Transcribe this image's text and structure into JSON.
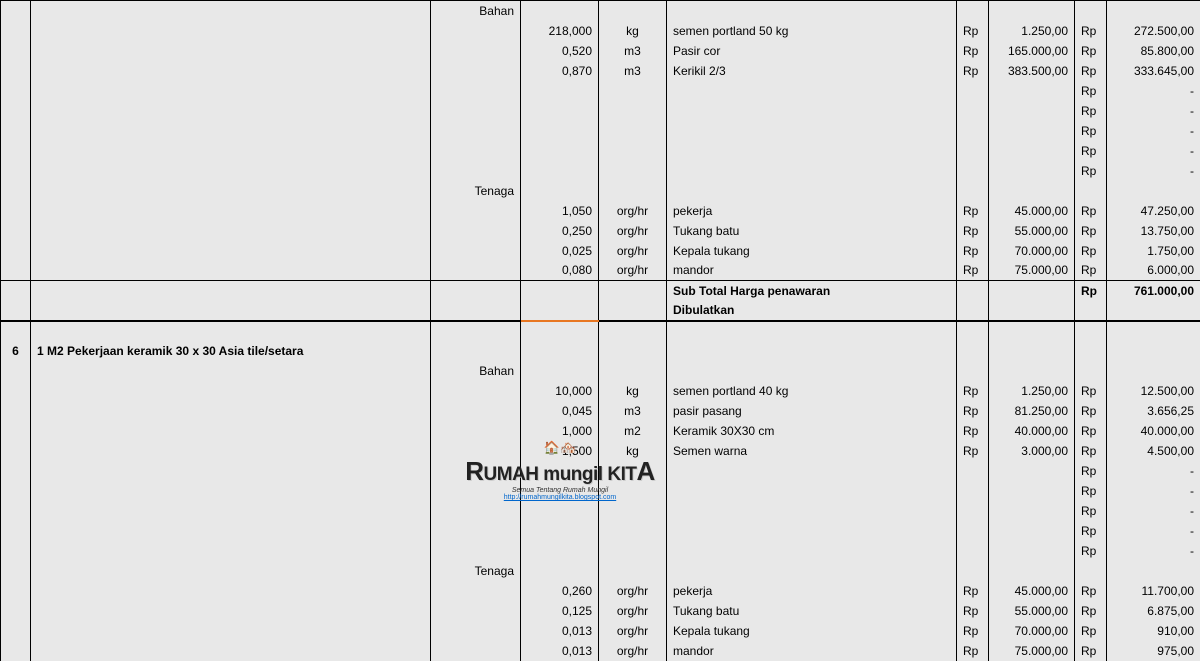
{
  "cols": {
    "no": 30,
    "desc": 400,
    "sub": 90,
    "qty": 78,
    "unit": 68,
    "item": 290,
    "curr1": 32,
    "price": 86,
    "curr2": 32,
    "total": 94
  },
  "labels": {
    "bahan": "Bahan",
    "tenaga": "Tenaga"
  },
  "section5": {
    "bahan": [
      {
        "qty": "218,000",
        "unit": "kg",
        "item": "semen portland 50 kg",
        "c1": "Rp",
        "price": "1.250,00",
        "c2": "Rp",
        "total": "272.500,00"
      },
      {
        "qty": "0,520",
        "unit": "m3",
        "item": "Pasir cor",
        "c1": "Rp",
        "price": "165.000,00",
        "c2": "Rp",
        "total": "85.800,00"
      },
      {
        "qty": "0,870",
        "unit": "m3",
        "item": "Kerikil 2/3",
        "c1": "Rp",
        "price": "383.500,00",
        "c2": "Rp",
        "total": "333.645,00"
      }
    ],
    "blank": [
      {
        "c2": "Rp",
        "total": "-"
      },
      {
        "c2": "Rp",
        "total": "-"
      },
      {
        "c2": "Rp",
        "total": "-"
      },
      {
        "c2": "Rp",
        "total": "-"
      },
      {
        "c2": "Rp",
        "total": "-"
      }
    ],
    "tenaga": [
      {
        "qty": "1,050",
        "unit": "org/hr",
        "item": "pekerja",
        "c1": "Rp",
        "price": "45.000,00",
        "c2": "Rp",
        "total": "47.250,00"
      },
      {
        "qty": "0,250",
        "unit": "org/hr",
        "item": "Tukang batu",
        "c1": "Rp",
        "price": "55.000,00",
        "c2": "Rp",
        "total": "13.750,00"
      },
      {
        "qty": "0,025",
        "unit": "org/hr",
        "item": "Kepala tukang",
        "c1": "Rp",
        "price": "70.000,00",
        "c2": "Rp",
        "total": "1.750,00"
      },
      {
        "qty": "0,080",
        "unit": "org/hr",
        "item": "mandor",
        "c1": "Rp",
        "price": "75.000,00",
        "c2": "Rp",
        "total": "6.000,00"
      }
    ],
    "subtotal1": "Sub Total Harga penawaran",
    "subtotal2": "Dibulatkan",
    "subtotal_curr": "Rp",
    "subtotal_val": "761.000,00"
  },
  "section6": {
    "no": "6",
    "title": "1 M2 Pekerjaan keramik 30 x 30 Asia tile/setara",
    "bahan": [
      {
        "qty": "10,000",
        "unit": "kg",
        "item": "semen portland 40 kg",
        "c1": "Rp",
        "price": "1.250,00",
        "c2": "Rp",
        "total": "12.500,00"
      },
      {
        "qty": "0,045",
        "unit": "m3",
        "item": "pasir pasang",
        "c1": "Rp",
        "price": "81.250,00",
        "c2": "Rp",
        "total": "3.656,25"
      },
      {
        "qty": "1,000",
        "unit": "m2",
        "item": "Keramik 30X30 cm",
        "c1": "Rp",
        "price": "40.000,00",
        "c2": "Rp",
        "total": "40.000,00"
      },
      {
        "qty": "1,500",
        "unit": "kg",
        "item": "Semen warna",
        "c1": "Rp",
        "price": "3.000,00",
        "c2": "Rp",
        "total": "4.500,00"
      }
    ],
    "blank": [
      {
        "c2": "Rp",
        "total": "-"
      },
      {
        "c2": "Rp",
        "total": "-"
      },
      {
        "c2": "Rp",
        "total": "-"
      },
      {
        "c2": "Rp",
        "total": "-"
      },
      {
        "c2": "Rp",
        "total": "-"
      }
    ],
    "tenaga": [
      {
        "qty": "0,260",
        "unit": "org/hr",
        "item": "pekerja",
        "c1": "Rp",
        "price": "45.000,00",
        "c2": "Rp",
        "total": "11.700,00"
      },
      {
        "qty": "0,125",
        "unit": "org/hr",
        "item": "Tukang batu",
        "c1": "Rp",
        "price": "55.000,00",
        "c2": "Rp",
        "total": "6.875,00"
      },
      {
        "qty": "0,013",
        "unit": "org/hr",
        "item": "Kepala tukang",
        "c1": "Rp",
        "price": "70.000,00",
        "c2": "Rp",
        "total": "910,00"
      },
      {
        "qty": "0,013",
        "unit": "org/hr",
        "item": "mandor",
        "c1": "Rp",
        "price": "75.000,00",
        "c2": "Rp",
        "total": "975,00"
      }
    ]
  },
  "watermark": {
    "title_pre": "R",
    "title_mid": "UMAH mungil KIT",
    "title_post": "A",
    "sub": "Semua Tentang Rumah Mungil",
    "link": "http://rumahmungilkita.blogspot.com"
  }
}
